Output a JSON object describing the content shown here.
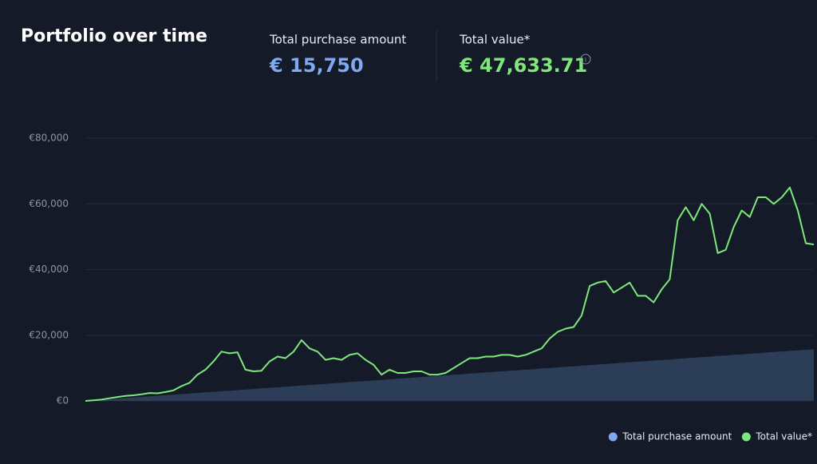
{
  "summary": [
    {
      "label": "Total purchase amount",
      "value": "€ 15,750"
    },
    {
      "label": "Total value*",
      "value": "€ 47,633.71"
    }
  ],
  "chart_data": {
    "type": "line",
    "title": "Portfolio over time",
    "categories": [
      null,
      null,
      null,
      null,
      null,
      null,
      null,
      null,
      null,
      null,
      null,
      null,
      null,
      null,
      null,
      null,
      null,
      null,
      null,
      null,
      null,
      null,
      null,
      null,
      null,
      null,
      null,
      null,
      null,
      null,
      null,
      null,
      null,
      null,
      null,
      null,
      null,
      null,
      null,
      null,
      null,
      null,
      null,
      null,
      null,
      null,
      null,
      null,
      null,
      null,
      null,
      null,
      null,
      null,
      null,
      null,
      null,
      null,
      null,
      null,
      null,
      null,
      null,
      null,
      null,
      null,
      null,
      null,
      null,
      null,
      null,
      null,
      null,
      null,
      null,
      null,
      null,
      null,
      null,
      null,
      null,
      null,
      null,
      null,
      null,
      null,
      null,
      null,
      null,
      null,
      null,
      null
    ],
    "series": [
      {
        "name": "Total purchase amount",
        "color": "#7fa9f0",
        "fill": "#2c3d58",
        "style": "area",
        "values": [
          0,
          173,
          346,
          519,
          692,
          865,
          1038,
          1211,
          1384,
          1557,
          1730,
          1903,
          2076,
          2249,
          2422,
          2595,
          2768,
          2941,
          3114,
          3287,
          3460,
          3633,
          3806,
          3979,
          4152,
          4325,
          4498,
          4671,
          4844,
          5017,
          5190,
          5363,
          5536,
          5709,
          5882,
          6055,
          6228,
          6401,
          6574,
          6747,
          6920,
          7093,
          7266,
          7439,
          7612,
          7785,
          7958,
          8131,
          8304,
          8477,
          8650,
          8823,
          8996,
          9169,
          9342,
          9515,
          9688,
          9861,
          10034,
          10207,
          10380,
          10553,
          10726,
          10899,
          11072,
          11245,
          11418,
          11591,
          11764,
          11937,
          12110,
          12283,
          12456,
          12629,
          12802,
          12975,
          13148,
          13321,
          13494,
          13667,
          13840,
          14013,
          14186,
          14359,
          14532,
          14705,
          14878,
          15051,
          15224,
          15397,
          15570,
          15750
        ]
      },
      {
        "name": "Total value*",
        "color": "#7ee87a",
        "style": "line",
        "values": [
          0,
          200,
          400,
          800,
          1200,
          1500,
          1700,
          2000,
          2400,
          2300,
          2700,
          3200,
          4500,
          5500,
          8000,
          9500,
          12000,
          15000,
          14500,
          14800,
          9500,
          9000,
          9200,
          12000,
          13500,
          13000,
          15000,
          18500,
          16000,
          15000,
          12500,
          13000,
          12500,
          14000,
          14500,
          12500,
          11000,
          8000,
          9500,
          8500,
          8500,
          9000,
          9000,
          8000,
          8000,
          8500,
          10000,
          11500,
          13000,
          13000,
          13500,
          13500,
          14000,
          14000,
          13500,
          14000,
          15000,
          16000,
          19000,
          21000,
          22000,
          22500,
          26000,
          35000,
          36000,
          36500,
          33000,
          34500,
          36000,
          32000,
          32000,
          30000,
          34000,
          37000,
          55000,
          59000,
          55000,
          60000,
          57000,
          45000,
          46000,
          53000,
          58000,
          56000,
          62000,
          62000,
          60000,
          62000,
          65000,
          58000,
          48000,
          47634
        ]
      }
    ],
    "ylim": [
      0,
      80000
    ],
    "yticks": [
      {
        "value": 0,
        "label": "€0"
      },
      {
        "value": 20000,
        "label": "€20,000"
      },
      {
        "value": 40000,
        "label": "€40,000"
      },
      {
        "value": 60000,
        "label": "€60,000"
      },
      {
        "value": 80000,
        "label": "€80,000"
      }
    ],
    "grid": true,
    "legend": "bottom-right"
  }
}
